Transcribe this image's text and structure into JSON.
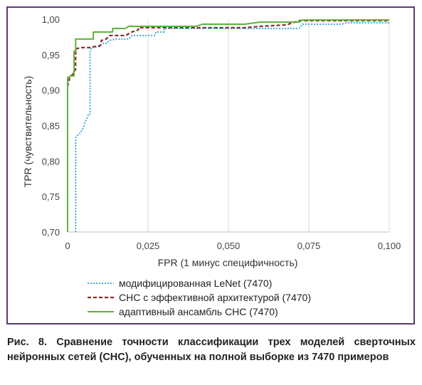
{
  "chart_data": {
    "type": "line",
    "title": "",
    "xlabel": "FPR (1 минус специфичность)",
    "ylabel": "TPR (чувствительность)",
    "xlim": [
      0,
      0.1
    ],
    "ylim": [
      0.7,
      1.0
    ],
    "x_ticks": [
      "0",
      "0,025",
      "0,050",
      "0,075",
      "0,100"
    ],
    "y_ticks": [
      "0,70",
      "0,75",
      "0,80",
      "0,85",
      "0,90",
      "0,95",
      "1,00"
    ],
    "grid": "vertical",
    "legend_position": "bottom",
    "series": [
      {
        "name": "модифицированная LeNet (7470)",
        "color": "#3fa9d8",
        "style": "dotted",
        "points": [
          [
            0.0025,
            0.7
          ],
          [
            0.0025,
            0.833
          ],
          [
            0.003,
            0.836
          ],
          [
            0.004,
            0.84
          ],
          [
            0.005,
            0.848
          ],
          [
            0.0055,
            0.856
          ],
          [
            0.006,
            0.86
          ],
          [
            0.0065,
            0.866
          ],
          [
            0.007,
            0.866
          ],
          [
            0.007,
            0.955
          ],
          [
            0.0075,
            0.96
          ],
          [
            0.01,
            0.962
          ],
          [
            0.011,
            0.966
          ],
          [
            0.012,
            0.966
          ],
          [
            0.013,
            0.97
          ],
          [
            0.015,
            0.972
          ],
          [
            0.019,
            0.972
          ],
          [
            0.02,
            0.977
          ],
          [
            0.027,
            0.977
          ],
          [
            0.0275,
            0.982
          ],
          [
            0.03,
            0.982
          ],
          [
            0.03,
            0.987
          ],
          [
            0.072,
            0.987
          ],
          [
            0.073,
            0.993
          ],
          [
            0.085,
            0.993
          ],
          [
            0.087,
            0.995
          ],
          [
            0.1,
            0.995
          ]
        ]
      },
      {
        "name": "СНС с эффективной архитектурой (7470)",
        "color": "#8b2a2a",
        "style": "dashed",
        "points": [
          [
            0.0,
            0.905
          ],
          [
            0.0005,
            0.915
          ],
          [
            0.001,
            0.92
          ],
          [
            0.0015,
            0.922
          ],
          [
            0.002,
            0.925
          ],
          [
            0.0025,
            0.93
          ],
          [
            0.0025,
            0.958
          ],
          [
            0.004,
            0.96
          ],
          [
            0.007,
            0.96
          ],
          [
            0.009,
            0.962
          ],
          [
            0.01,
            0.962
          ],
          [
            0.0105,
            0.97
          ],
          [
            0.012,
            0.972
          ],
          [
            0.013,
            0.977
          ],
          [
            0.018,
            0.977
          ],
          [
            0.02,
            0.982
          ],
          [
            0.022,
            0.985
          ],
          [
            0.022,
            0.988
          ],
          [
            0.055,
            0.988
          ],
          [
            0.06,
            0.99
          ],
          [
            0.068,
            0.992
          ],
          [
            0.07,
            0.995
          ],
          [
            0.072,
            0.998
          ],
          [
            0.1,
            0.998
          ]
        ]
      },
      {
        "name": "адаптивный ансамбль СНС (7470)",
        "color": "#5db33b",
        "style": "solid",
        "points": [
          [
            0.0,
            0.7
          ],
          [
            0.0,
            0.918
          ],
          [
            0.001,
            0.92
          ],
          [
            0.002,
            0.92
          ],
          [
            0.002,
            0.955
          ],
          [
            0.0025,
            0.955
          ],
          [
            0.0025,
            0.972
          ],
          [
            0.006,
            0.972
          ],
          [
            0.008,
            0.972
          ],
          [
            0.008,
            0.982
          ],
          [
            0.014,
            0.982
          ],
          [
            0.014,
            0.987
          ],
          [
            0.018,
            0.987
          ],
          [
            0.019,
            0.99
          ],
          [
            0.03,
            0.99
          ],
          [
            0.04,
            0.99
          ],
          [
            0.042,
            0.993
          ],
          [
            0.055,
            0.993
          ],
          [
            0.06,
            0.996
          ],
          [
            0.072,
            0.996
          ],
          [
            0.073,
            0.999
          ],
          [
            0.1,
            0.999
          ]
        ]
      }
    ]
  },
  "caption": "Рис. 8. Сравнение точности классификации трех моделей сверточных нейронных сетей (СНС), обученных на полной выборке из 7470 примеров"
}
